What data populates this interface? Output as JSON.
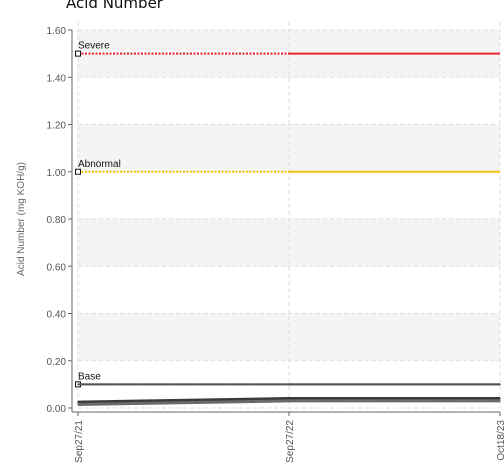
{
  "chart_data": {
    "type": "line",
    "title": "Acid Number",
    "ylabel": "Acid Number (mg KOH/g)",
    "xlabel": "",
    "ylim": [
      0,
      1.6
    ],
    "y_ticks": [
      "0.00",
      "0.20",
      "0.40",
      "0.60",
      "0.80",
      "1.00",
      "1.20",
      "1.40",
      "1.60"
    ],
    "categories": [
      "Sep27/21",
      "Sep27/22",
      "Oct18/23"
    ],
    "grid": true,
    "thresholds": [
      {
        "name": "Severe",
        "value": 1.5,
        "color": "#e8262b"
      },
      {
        "name": "Abnormal",
        "value": 1.0,
        "color": "#f4c20d"
      },
      {
        "name": "Base",
        "value": 0.1,
        "color": "#333333"
      }
    ],
    "series": [
      {
        "values": [
          0.1,
          0.1,
          0.1
        ],
        "color": "#555555"
      },
      {
        "values": [
          0.025,
          0.04,
          0.04
        ],
        "color": "#3a3a3a"
      },
      {
        "values": [
          0.015,
          0.03,
          0.03
        ],
        "color": "#6a6a6a"
      }
    ]
  }
}
